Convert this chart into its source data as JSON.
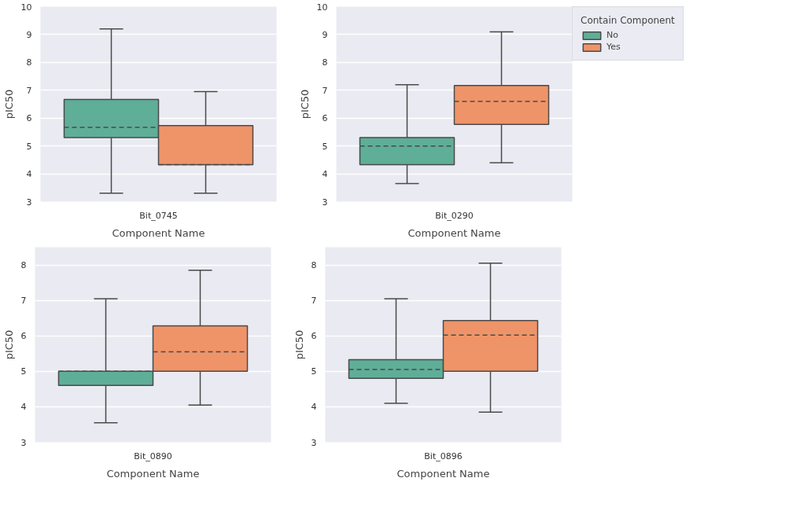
{
  "chart_data": [
    {
      "type": "box",
      "categories": [
        "Bit_0745"
      ],
      "xlabel": "Component Name",
      "ylabel": "pIC50",
      "ylim": [
        3,
        10
      ],
      "yticks": [
        3,
        4,
        5,
        6,
        7,
        8,
        9,
        10
      ],
      "grid": "y",
      "legend": false,
      "series": [
        {
          "color": "#5fae97",
          "boxes": [
            {
              "low": 3.3,
              "q1": 5.3,
              "median": 5.67,
              "q3": 6.67,
              "high": 9.2
            }
          ]
        },
        {
          "color": "#ef9468",
          "boxes": [
            {
              "low": 3.3,
              "q1": 4.33,
              "median": 4.33,
              "q3": 5.73,
              "high": 6.95
            }
          ]
        }
      ]
    },
    {
      "type": "box",
      "categories": [
        "Bit_0290"
      ],
      "xlabel": "Component Name",
      "ylabel": "pIC50",
      "ylim": [
        3,
        10
      ],
      "yticks": [
        3,
        4,
        5,
        6,
        7,
        8,
        9,
        10
      ],
      "grid": "y",
      "legend": "top right",
      "legend_title": "Contain Component",
      "series": [
        {
          "name": "No",
          "color": "#5fae97",
          "boxes": [
            {
              "low": 3.65,
              "q1": 4.33,
              "median": 5.0,
              "q3": 5.3,
              "high": 7.2
            }
          ]
        },
        {
          "name": "Yes",
          "color": "#ef9468",
          "boxes": [
            {
              "low": 4.4,
              "q1": 5.77,
              "median": 6.6,
              "q3": 7.17,
              "high": 9.1
            }
          ]
        }
      ]
    },
    {
      "type": "box",
      "categories": [
        "Bit_0890"
      ],
      "xlabel": "Component Name",
      "ylabel": "pIC50",
      "ylim": [
        3,
        8.5
      ],
      "yticks": [
        3,
        4,
        5,
        6,
        7,
        8
      ],
      "grid": "y",
      "legend": false,
      "series": [
        {
          "color": "#5fae97",
          "boxes": [
            {
              "low": 3.55,
              "q1": 4.6,
              "median": 5.0,
              "q3": 5.0,
              "high": 7.05
            }
          ]
        },
        {
          "color": "#ef9468",
          "boxes": [
            {
              "low": 4.05,
              "q1": 5.0,
              "median": 5.55,
              "q3": 6.28,
              "high": 7.85
            }
          ]
        }
      ]
    },
    {
      "type": "box",
      "categories": [
        "Bit_0896"
      ],
      "xlabel": "Component Name",
      "ylabel": "pIC50",
      "ylim": [
        3,
        8.5
      ],
      "yticks": [
        3,
        4,
        5,
        6,
        7,
        8
      ],
      "grid": "y",
      "legend": false,
      "series": [
        {
          "color": "#5fae97",
          "boxes": [
            {
              "low": 4.1,
              "q1": 4.8,
              "median": 5.05,
              "q3": 5.33,
              "high": 7.05
            }
          ]
        },
        {
          "color": "#ef9468",
          "boxes": [
            {
              "low": 3.85,
              "q1": 5.0,
              "median": 6.02,
              "q3": 6.43,
              "high": 8.05
            }
          ]
        }
      ]
    }
  ]
}
